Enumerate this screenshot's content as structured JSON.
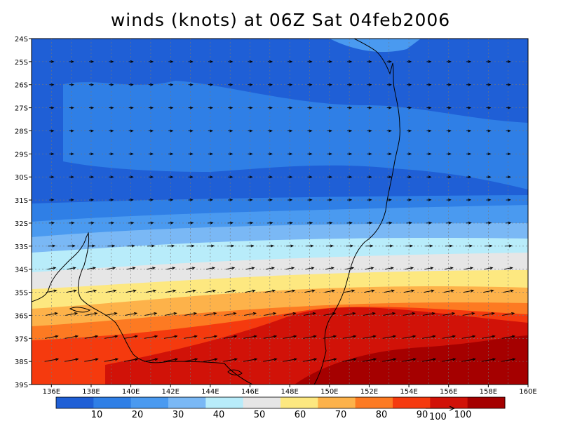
{
  "title": "winds (knots) at 06Z Sat 04feb2006",
  "map": {
    "lat_labels": [
      "24S",
      "25S",
      "26S",
      "27S",
      "28S",
      "29S",
      "30S",
      "31S",
      "32S",
      "33S",
      "34S",
      "35S",
      "36S",
      "37S",
      "38S",
      "39S"
    ],
    "lon_labels": [
      "136E",
      "138E",
      "140E",
      "142E",
      "144E",
      "146E",
      "148E",
      "150E",
      "152E",
      "154E",
      "156E",
      "158E",
      "160E"
    ],
    "lat_range": [
      -39,
      -24
    ],
    "lon_range": [
      135,
      160
    ],
    "grid": "dotted",
    "coastline_color": "#000000"
  },
  "colorbar": {
    "colors": [
      "#1f5fd6",
      "#2f7fe6",
      "#4a9af0",
      "#7ab8f5",
      "#b8ecfa",
      "#e6e6e6",
      "#fde880",
      "#fdb24a",
      "#fd7a22",
      "#f53a0e",
      "#d11208",
      "#a50000"
    ],
    "labels": [
      "10",
      "20",
      "30",
      "40",
      "50",
      "60",
      "70",
      "80",
      "90",
      "100"
    ]
  },
  "vector_key": {
    "label": "100",
    "value": 100
  },
  "chart_data": {
    "type": "heatmap",
    "title": "winds (knots) at 06Z Sat 04feb2006",
    "variable": "wind speed",
    "units": "knots",
    "levels": [
      10,
      20,
      30,
      40,
      50,
      60,
      70,
      80,
      90,
      100
    ],
    "speed_by_latitude": [
      {
        "lat": -24,
        "speed": 15
      },
      {
        "lat": -25,
        "speed": 18
      },
      {
        "lat": -26,
        "speed": 22
      },
      {
        "lat": -27,
        "speed": 24
      },
      {
        "lat": -28,
        "speed": 25
      },
      {
        "lat": -29,
        "speed": 22
      },
      {
        "lat": -30,
        "speed": 22
      },
      {
        "lat": -31,
        "speed": 25
      },
      {
        "lat": -32,
        "speed": 35
      },
      {
        "lat": -33,
        "speed": 48
      },
      {
        "lat": -34,
        "speed": 58
      },
      {
        "lat": -35,
        "speed": 70
      },
      {
        "lat": -36,
        "speed": 82
      },
      {
        "lat": -37,
        "speed": 90
      },
      {
        "lat": -38,
        "speed": 95
      },
      {
        "lat": -39,
        "speed": 92
      }
    ],
    "wind_direction": "westerly"
  }
}
